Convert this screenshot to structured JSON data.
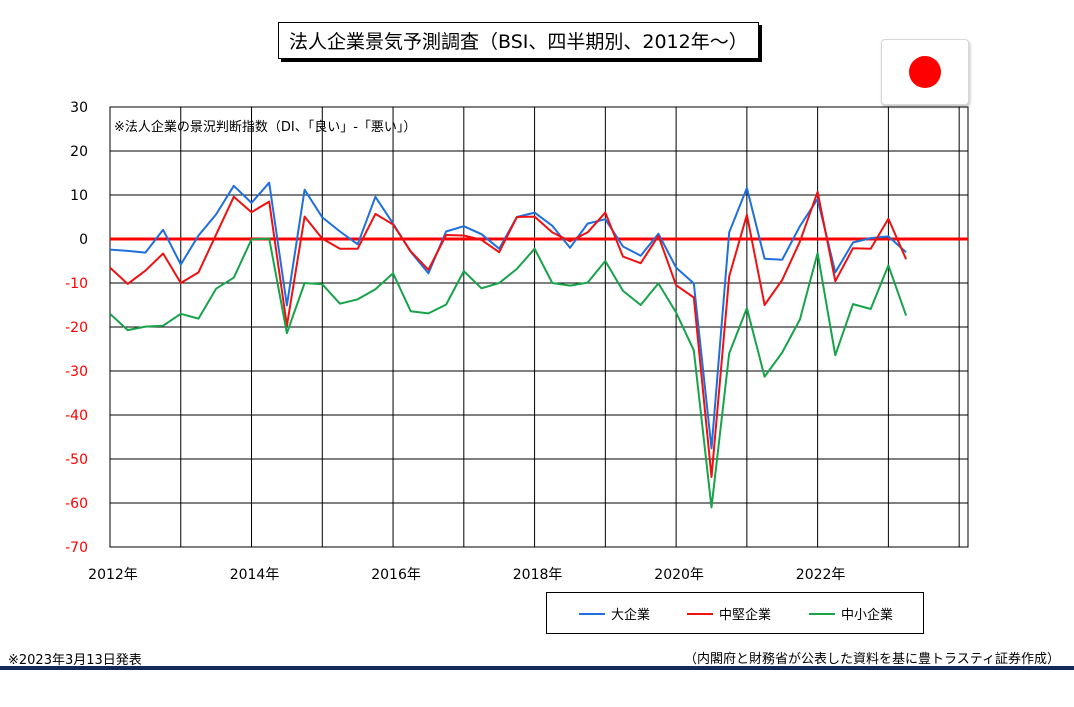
{
  "title": "法人企業景気予測調査（BSI、四半期別、2012年～）",
  "flag": {
    "name": "japan-flag",
    "sun_color": "#ff0000"
  },
  "footer": {
    "date_note": "※2023年3月13日発表",
    "source": "（内閣府と財務省が公表した資料を基に豊トラスティ証券作成）"
  },
  "chart_data": {
    "type": "line",
    "annotation": "※法人企業の景況判断指数（DI、「良い」-「悪い」）",
    "ylim": [
      -70,
      30
    ],
    "yticks": [
      30,
      20,
      10,
      0,
      -10,
      -20,
      -30,
      -40,
      -50,
      -60,
      -70
    ],
    "negative_tick_color": "#ff0000",
    "xlim": [
      2012.0,
      2024.125
    ],
    "xtick_labels": [
      "2012年",
      "2014年",
      "2016年",
      "2018年",
      "2020年",
      "2022年"
    ],
    "xtick_years": [
      2012,
      2014,
      2016,
      2018,
      2020,
      2022
    ],
    "grid": true,
    "zero_line_color": "#ff0000",
    "legend_position": "bottom-right",
    "x": [
      2012.0,
      2012.25,
      2012.5,
      2012.75,
      2013.0,
      2013.25,
      2013.5,
      2013.75,
      2014.0,
      2014.25,
      2014.5,
      2014.75,
      2015.0,
      2015.25,
      2015.5,
      2015.75,
      2016.0,
      2016.25,
      2016.5,
      2016.75,
      2017.0,
      2017.25,
      2017.5,
      2017.75,
      2018.0,
      2018.25,
      2018.5,
      2018.75,
      2019.0,
      2019.25,
      2019.5,
      2019.75,
      2020.0,
      2020.25,
      2020.5,
      2020.75,
      2021.0,
      2021.25,
      2021.5,
      2021.75,
      2022.0,
      2022.25,
      2022.5,
      2022.75,
      2023.0,
      2023.25
    ],
    "series": [
      {
        "name": "大企業",
        "color": "#1f6fdc",
        "values": [
          -2.4,
          -2.7,
          -3.1,
          2.1,
          -5.8,
          0.8,
          5.6,
          12.1,
          8.2,
          12.8,
          -15.1,
          11.2,
          4.9,
          1.7,
          -1.2,
          9.6,
          3.5,
          -2.9,
          -7.8,
          1.7,
          2.9,
          1.1,
          -2.2,
          5.0,
          6.0,
          3.0,
          -2.0,
          3.5,
          4.5,
          -1.7,
          -3.8,
          1.2,
          -6.5,
          -10.1,
          -47.6,
          1.5,
          11.6,
          -4.5,
          -4.7,
          2.9,
          9.1,
          -7.6,
          -0.8,
          0.2,
          0.6,
          -3.0
        ]
      },
      {
        "name": "中堅企業",
        "color": "#ee1111",
        "values": [
          -6.5,
          -10.2,
          -7.2,
          -3.3,
          -10.0,
          -7.6,
          1.0,
          9.6,
          6.1,
          8.5,
          -19.7,
          5.1,
          0.1,
          -2.2,
          -2.2,
          5.7,
          3.3,
          -2.8,
          -7.0,
          0.9,
          0.8,
          -0.2,
          -3.0,
          5.0,
          5.1,
          1.5,
          -0.5,
          1.5,
          6.0,
          -4.0,
          -5.5,
          0.7,
          -10.5,
          -13.3,
          -54.1,
          -8.5,
          5.5,
          -15.0,
          -9.3,
          -0.6,
          10.7,
          -9.6,
          -2.1,
          -2.2,
          4.6,
          -4.6
        ]
      },
      {
        "name": "中小企業",
        "color": "#17a34a",
        "values": [
          -17.0,
          -20.7,
          -19.9,
          -19.7,
          -17.0,
          -18.1,
          -11.3,
          -8.8,
          -0.1,
          0.1,
          -21.4,
          -10.0,
          -10.3,
          -14.7,
          -13.7,
          -11.4,
          -7.8,
          -16.4,
          -16.9,
          -14.9,
          -7.3,
          -11.2,
          -10.0,
          -6.8,
          -2.2,
          -10.0,
          -10.6,
          -9.9,
          -5.0,
          -11.8,
          -15.0,
          -10.1,
          -16.7,
          -25.3,
          -61.0,
          -26.0,
          -15.7,
          -31.3,
          -25.8,
          -18.3,
          -3.2,
          -26.4,
          -14.8,
          -15.9,
          -6.0,
          -17.4
        ]
      }
    ]
  }
}
